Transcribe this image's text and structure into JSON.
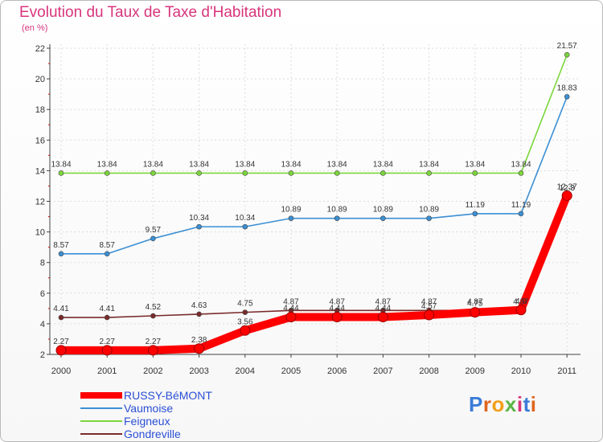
{
  "chart_data": {
    "type": "line",
    "title": "Evolution du Taux de Taxe d'Habitation",
    "ylabel": "(en %)",
    "xlabel": "",
    "ylim": [
      2,
      22
    ],
    "yticks": [
      "2",
      "4",
      "6",
      "8",
      "10",
      "12",
      "14",
      "16",
      "18",
      "20",
      "22"
    ],
    "categories": [
      "2000",
      "2001",
      "2002",
      "2003",
      "2004",
      "2005",
      "2006",
      "2007",
      "2008",
      "2009",
      "2010",
      "2011"
    ],
    "series": [
      {
        "name": "RUSSY-BéMONT",
        "color": "#ff0000",
        "values": [
          2.27,
          2.27,
          2.27,
          2.38,
          3.56,
          4.44,
          4.44,
          4.44,
          4.57,
          4.75,
          4.9,
          12.37
        ],
        "labels": [
          "2.27",
          "2.27",
          "2.27",
          "2.38",
          "3.56",
          "4.44",
          "4.44",
          "4.44",
          "4.57",
          "4.75",
          "4.9",
          "12.37"
        ],
        "emphasis": true
      },
      {
        "name": "Vaumoise",
        "color": "#3b8fd4",
        "values": [
          8.57,
          8.57,
          9.57,
          10.34,
          10.34,
          10.89,
          10.89,
          10.89,
          10.89,
          11.19,
          11.19,
          18.83
        ],
        "labels": [
          "8.57",
          "8.57",
          "9.57",
          "10.34",
          "10.34",
          "10.89",
          "10.89",
          "10.89",
          "10.89",
          "11.19",
          "11.19",
          "18.83"
        ]
      },
      {
        "name": "Feigneux",
        "color": "#7cd63b",
        "values": [
          13.84,
          13.84,
          13.84,
          13.84,
          13.84,
          13.84,
          13.84,
          13.84,
          13.84,
          13.84,
          13.84,
          21.57
        ],
        "labels": [
          "13.84",
          "13.84",
          "13.84",
          "13.84",
          "13.84",
          "13.84",
          "13.84",
          "13.84",
          "13.84",
          "13.84",
          "13.84",
          "21.57"
        ]
      },
      {
        "name": "Gondreville",
        "color": "#7a2a2a",
        "values": [
          4.41,
          4.41,
          4.52,
          4.63,
          4.75,
          4.87,
          4.87,
          4.87,
          4.87,
          4.87,
          4.87,
          12.3
        ],
        "labels": [
          "4.41",
          "4.41",
          "4.52",
          "4.63",
          "4.75",
          "4.87",
          "4.87",
          "4.87",
          "4.87",
          "4.87",
          "4.87",
          "12.3"
        ]
      }
    ]
  },
  "logo": {
    "text": "Proxiti"
  }
}
